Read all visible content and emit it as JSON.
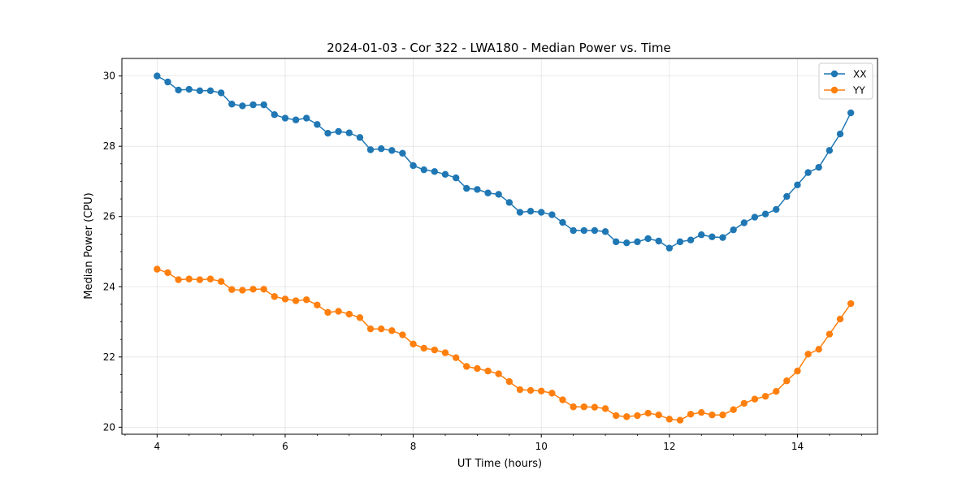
{
  "chart_data": {
    "type": "line",
    "title": "2024-01-03 - Cor 322 - LWA180 - Median Power vs. Time",
    "xlabel": "UT Time (hours)",
    "ylabel": "Median Power (CPU)",
    "xlim": [
      3.45,
      15.25
    ],
    "ylim": [
      19.8,
      30.5
    ],
    "grid": true,
    "legend_position": "top-right",
    "xticks": [
      4,
      6,
      8,
      10,
      12,
      14
    ],
    "xtick_labels": [
      "4",
      "6",
      "8",
      "10",
      "12",
      "14"
    ],
    "yticks": [
      20,
      22,
      24,
      26,
      28,
      30
    ],
    "ytick_labels": [
      "20",
      "22",
      "24",
      "26",
      "28",
      "30"
    ],
    "x": [
      4.0,
      4.167,
      4.333,
      4.5,
      4.667,
      4.833,
      5.0,
      5.167,
      5.333,
      5.5,
      5.667,
      5.833,
      6.0,
      6.167,
      6.333,
      6.5,
      6.667,
      6.833,
      7.0,
      7.167,
      7.333,
      7.5,
      7.667,
      7.833,
      8.0,
      8.167,
      8.333,
      8.5,
      8.667,
      8.833,
      9.0,
      9.167,
      9.333,
      9.5,
      9.667,
      9.833,
      10.0,
      10.167,
      10.333,
      10.5,
      10.667,
      10.833,
      11.0,
      11.167,
      11.333,
      11.5,
      11.667,
      11.833,
      12.0,
      12.167,
      12.333,
      12.5,
      12.667,
      12.833,
      13.0,
      13.167,
      13.333,
      13.5,
      13.667,
      13.833,
      14.0,
      14.167,
      14.333,
      14.5,
      14.667,
      14.833
    ],
    "series": [
      {
        "name": "XX",
        "color": "#1f77b4",
        "values": [
          30.0,
          29.83,
          29.6,
          29.62,
          29.58,
          29.58,
          29.52,
          29.2,
          29.15,
          29.18,
          29.18,
          28.9,
          28.8,
          28.75,
          28.8,
          28.62,
          28.37,
          28.42,
          28.38,
          28.25,
          27.9,
          27.93,
          27.88,
          27.8,
          27.45,
          27.33,
          27.28,
          27.2,
          27.1,
          26.8,
          26.77,
          26.67,
          26.63,
          26.4,
          26.12,
          26.15,
          26.12,
          26.05,
          25.83,
          25.6,
          25.6,
          25.6,
          25.57,
          25.28,
          25.25,
          25.28,
          25.37,
          25.3,
          25.1,
          25.28,
          25.33,
          25.48,
          25.42,
          25.4,
          25.62,
          25.82,
          25.98,
          26.07,
          26.2,
          26.57,
          26.9,
          27.25,
          27.4,
          27.88,
          28.35,
          28.95
        ]
      },
      {
        "name": "YY",
        "color": "#ff7f0e",
        "values": [
          24.5,
          24.4,
          24.2,
          24.22,
          24.2,
          24.22,
          24.15,
          23.92,
          23.9,
          23.93,
          23.93,
          23.72,
          23.65,
          23.6,
          23.63,
          23.48,
          23.27,
          23.3,
          23.22,
          23.12,
          22.8,
          22.8,
          22.75,
          22.63,
          22.37,
          22.25,
          22.2,
          22.12,
          21.98,
          21.73,
          21.67,
          21.6,
          21.52,
          21.3,
          21.07,
          21.05,
          21.03,
          20.97,
          20.78,
          20.58,
          20.58,
          20.57,
          20.53,
          20.33,
          20.3,
          20.33,
          20.4,
          20.35,
          20.23,
          20.2,
          20.37,
          20.42,
          20.35,
          20.35,
          20.5,
          20.68,
          20.8,
          20.88,
          21.02,
          21.32,
          21.6,
          22.08,
          22.22,
          22.65,
          23.08,
          23.52
        ]
      }
    ]
  }
}
